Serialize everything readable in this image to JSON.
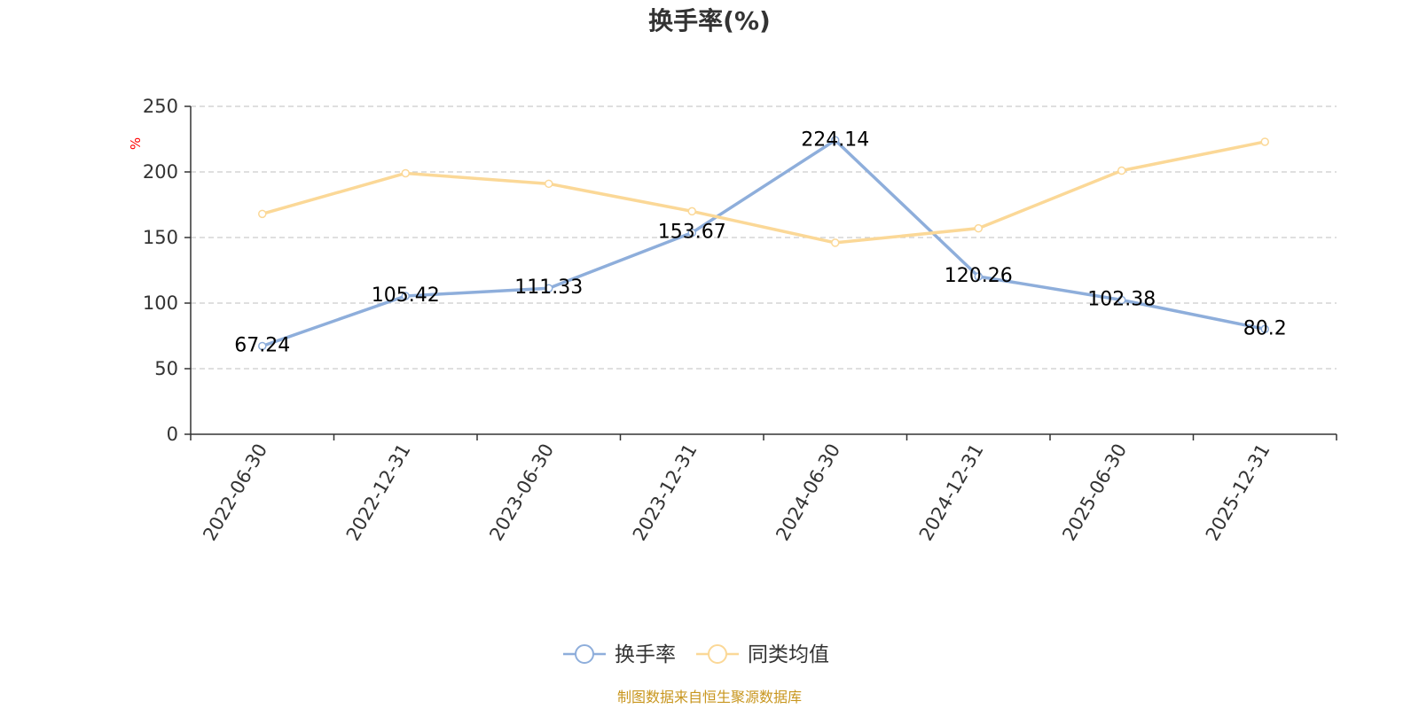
{
  "source_note": "制图数据来自恒生聚源数据库",
  "chart_data": {
    "type": "line",
    "title": "换手率(%)",
    "ylabel": "%",
    "xlabel": "",
    "categories": [
      "2022-06-30",
      "2022-12-31",
      "2023-06-30",
      "2023-12-31",
      "2024-06-30",
      "2024-12-31",
      "2025-06-30",
      "2025-12-31"
    ],
    "ylim": [
      0,
      250
    ],
    "yticks": [
      0,
      50,
      100,
      150,
      200,
      250
    ],
    "grid": true,
    "legend_position": "bottom-center",
    "series": [
      {
        "name": "换手率",
        "color": "#8eaedb",
        "values": [
          67.24,
          105.42,
          111.33,
          153.67,
          224.14,
          120.26,
          102.38,
          80.2
        ],
        "labels": [
          "67.24",
          "105.42",
          "111.33",
          "153.67",
          "224.14",
          "120.26",
          "102.38",
          "80.2"
        ]
      },
      {
        "name": "同类均值",
        "color": "#fbd897",
        "values": [
          168,
          199,
          191,
          170,
          146,
          157,
          201,
          223
        ]
      }
    ]
  }
}
